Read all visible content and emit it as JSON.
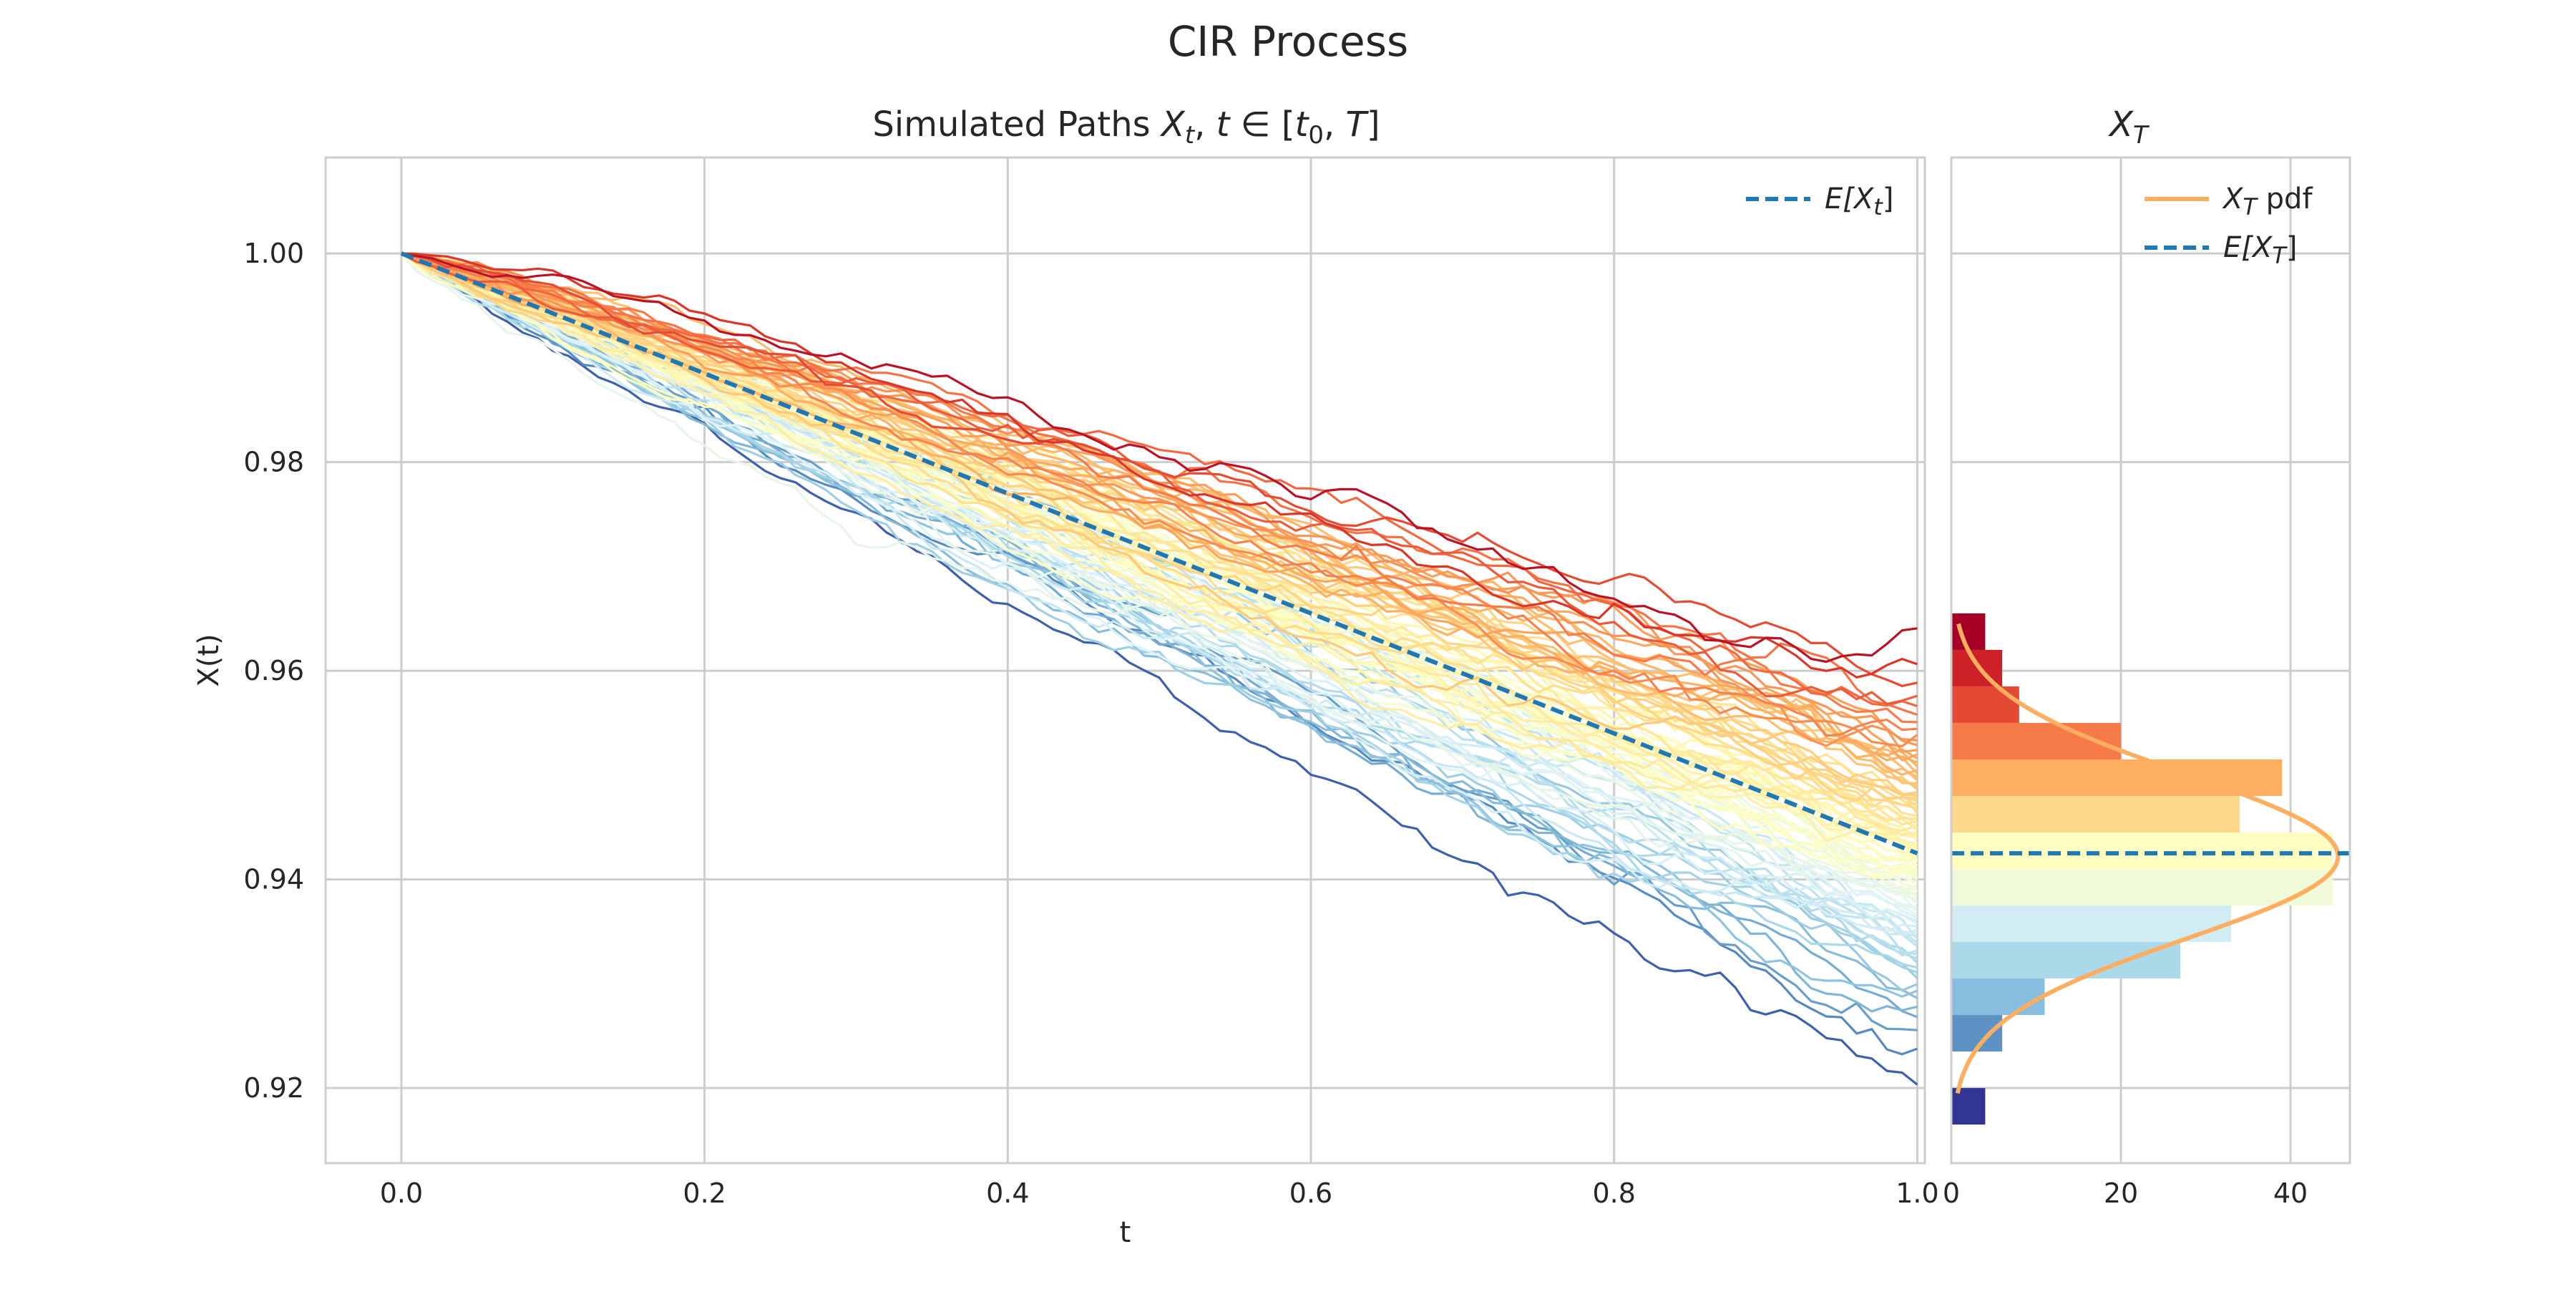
{
  "figure": {
    "title": "CIR Process"
  },
  "chart_data": [
    {
      "type": "line",
      "title": "Simulated Paths X_t, t ∈ [t_0, T]",
      "title_parts": {
        "prefix": "Simulated Paths ",
        "x": "X",
        "x_sub": "t",
        "mid": ", ",
        "t": "t",
        "in": " ∈ [",
        "t0": "t",
        "t0_sub": "0",
        "comma": ", ",
        "T": "T",
        "close": "]"
      },
      "xlabel": "t",
      "ylabel": "X(t)",
      "xlim": [
        -0.05,
        1.005
      ],
      "ylim": [
        0.9128,
        1.0092
      ],
      "xticks": [
        0.0,
        0.2,
        0.4,
        0.6,
        0.8,
        1.0
      ],
      "xtick_labels": [
        "0.0",
        "0.2",
        "0.4",
        "0.6",
        "0.8",
        "1.0"
      ],
      "yticks": [
        0.92,
        0.94,
        0.96,
        0.98,
        1.0
      ],
      "ytick_labels": [
        "0.92",
        "0.94",
        "0.96",
        "0.98",
        "1.00"
      ],
      "grid": true,
      "legend_placement": "top-right",
      "legend": [
        {
          "label_base": "E[X",
          "label_sub": "t",
          "label_end": "]",
          "style": "dashed",
          "color": "#1f77b4"
        }
      ],
      "x0": 0.0,
      "x1": 1.0,
      "X0": 1.0,
      "path_count": 100,
      "terminal_range": [
        0.917,
        0.966
      ],
      "mean_line": {
        "x": [
          0.0,
          1.0
        ],
        "y": [
          1.0,
          0.9425
        ],
        "color": "#1f77b4",
        "style": "dashed"
      },
      "colormap": "RdYlBu_r"
    },
    {
      "type": "bar",
      "orientation": "horizontal",
      "title_base": "X",
      "title_sub": "T",
      "xlim": [
        0,
        47
      ],
      "xticks": [
        0,
        20,
        40
      ],
      "xtick_labels": [
        "0",
        "20",
        "40"
      ],
      "ylim": [
        0.9128,
        1.0092
      ],
      "grid": true,
      "legend_placement": "top-right",
      "legend": [
        {
          "label_base": "X",
          "label_sub": "T",
          "label_end": " pdf",
          "style": "solid",
          "color": "#fdae61"
        },
        {
          "label_base": "E[X",
          "label_sub": "T",
          "label_end": "]",
          "style": "dashed",
          "color": "#1f77b4"
        }
      ],
      "bins": [
        {
          "low": 0.9165,
          "high": 0.92,
          "count": 4,
          "color": "#313695"
        },
        {
          "low": 0.92,
          "high": 0.9235,
          "count": 0,
          "color": "#4575b4"
        },
        {
          "low": 0.9235,
          "high": 0.927,
          "count": 6,
          "color": "#5f92c4"
        },
        {
          "low": 0.927,
          "high": 0.9305,
          "count": 11,
          "color": "#88bde0"
        },
        {
          "low": 0.9305,
          "high": 0.934,
          "count": 27,
          "color": "#abd9e9"
        },
        {
          "low": 0.934,
          "high": 0.9375,
          "count": 33,
          "color": "#d2ecf3"
        },
        {
          "low": 0.9375,
          "high": 0.941,
          "count": 45,
          "color": "#f0f9d8"
        },
        {
          "low": 0.941,
          "high": 0.9445,
          "count": 45,
          "color": "#fefec0"
        },
        {
          "low": 0.9445,
          "high": 0.948,
          "count": 34,
          "color": "#fed889"
        },
        {
          "low": 0.948,
          "high": 0.9515,
          "count": 39,
          "color": "#fdae61"
        },
        {
          "low": 0.9515,
          "high": 0.955,
          "count": 20,
          "color": "#f57a48"
        },
        {
          "low": 0.955,
          "high": 0.9585,
          "count": 8,
          "color": "#e34933"
        },
        {
          "low": 0.9585,
          "high": 0.962,
          "count": 6,
          "color": "#cc2127"
        },
        {
          "low": 0.962,
          "high": 0.9655,
          "count": 4,
          "color": "#a50026"
        }
      ],
      "pdf": {
        "mean": 0.9422,
        "sd": 0.0079,
        "scale": 45.6,
        "range": [
          0.9195,
          0.9645
        ],
        "color": "#fdae61"
      },
      "mean_line": {
        "y": 0.9425,
        "color": "#1f77b4",
        "style": "dashed"
      }
    }
  ]
}
